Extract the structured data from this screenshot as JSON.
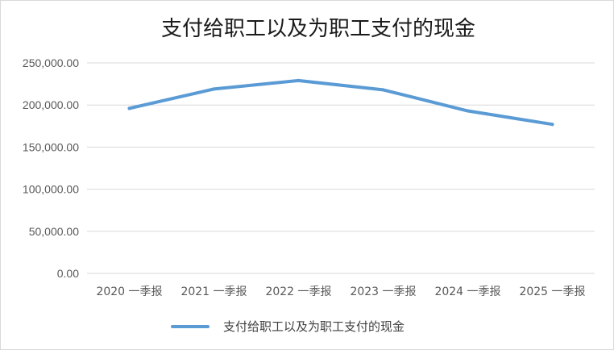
{
  "chart_data": {
    "type": "line",
    "title": "支付给职工以及为职工支付的现金",
    "categories": [
      "2020 一季报",
      "2021 一季报",
      "2022 一季报",
      "2023 一季报",
      "2024 一季报",
      "2025 一季报"
    ],
    "series": [
      {
        "name": "支付给职工以及为职工支付的现金",
        "values": [
          196000,
          219000,
          229000,
          218000,
          193000,
          177000
        ],
        "color": "#5b9bd5"
      }
    ],
    "yticks": [
      "0.00",
      "50,000.00",
      "100,000.00",
      "150,000.00",
      "200,000.00",
      "250,000.00"
    ],
    "ylim": [
      0,
      250000
    ],
    "grid": true,
    "legend_position": "bottom"
  }
}
